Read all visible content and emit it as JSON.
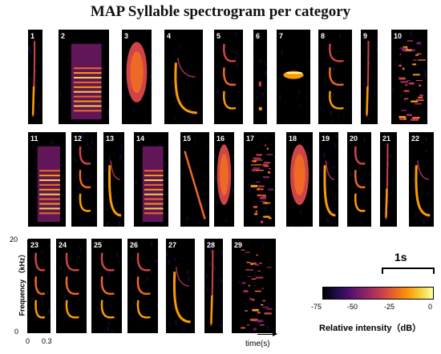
{
  "title": "MAP Syllable spectrogram per category",
  "panels": [
    {
      "label": "1",
      "pattern": "thin-sweep"
    },
    {
      "label": "2",
      "pattern": "broad-band"
    },
    {
      "label": "3",
      "pattern": "blob"
    },
    {
      "label": "4",
      "pattern": "hook"
    },
    {
      "label": "5",
      "pattern": "multi-hook"
    },
    {
      "label": "6",
      "pattern": "dots"
    },
    {
      "label": "7",
      "pattern": "mid-burst"
    },
    {
      "label": "8",
      "pattern": "multi-hook"
    },
    {
      "label": "9",
      "pattern": "thin-sweep"
    },
    {
      "label": "10",
      "pattern": "noise"
    },
    {
      "label": "11",
      "pattern": "broad-band"
    },
    {
      "label": "12",
      "pattern": "multi-hook"
    },
    {
      "label": "13",
      "pattern": "hook"
    },
    {
      "label": "14",
      "pattern": "broad-band"
    },
    {
      "label": "15",
      "pattern": "diagonal"
    },
    {
      "label": "16",
      "pattern": "blob"
    },
    {
      "label": "17",
      "pattern": "noise"
    },
    {
      "label": "18",
      "pattern": "blob"
    },
    {
      "label": "19",
      "pattern": "hook"
    },
    {
      "label": "20",
      "pattern": "multi-hook"
    },
    {
      "label": "21",
      "pattern": "thin-sweep"
    },
    {
      "label": "22",
      "pattern": "hook"
    },
    {
      "label": "23",
      "pattern": "multi-hook"
    },
    {
      "label": "24",
      "pattern": "multi-hook"
    },
    {
      "label": "25",
      "pattern": "multi-hook"
    },
    {
      "label": "26",
      "pattern": "multi-hook"
    },
    {
      "label": "27",
      "pattern": "hook"
    },
    {
      "label": "28",
      "pattern": "thin-sweep"
    },
    {
      "label": "29",
      "pattern": "noise"
    }
  ],
  "axes": {
    "y_label": "Frequency （kHz）",
    "y_ticks": [
      "20",
      "0"
    ],
    "x_ticks": [
      "0",
      "0.3"
    ],
    "time_label": "time(s)"
  },
  "scalebar": {
    "label": "1s"
  },
  "colorbar": {
    "ticks": [
      "-75",
      "-50",
      "-25",
      "0"
    ],
    "label": "Relative intensity（dB）",
    "colormap": "magma"
  }
}
